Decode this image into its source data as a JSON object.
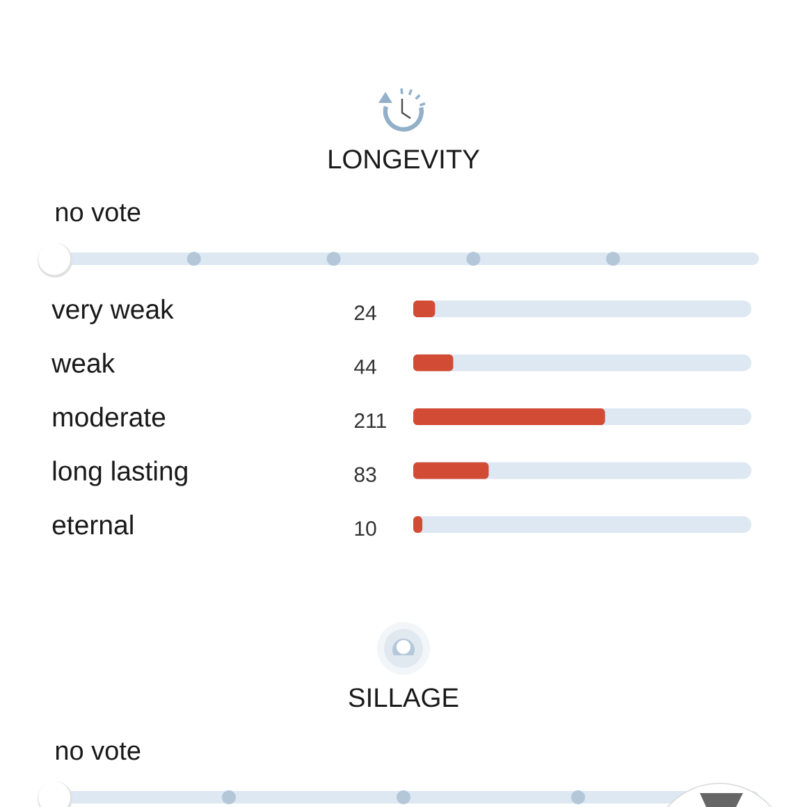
{
  "chart_data": [
    {
      "type": "bar",
      "title": "LONGEVITY",
      "annotations": [
        "no vote"
      ],
      "orientation": "horizontal",
      "categories": [
        "very weak",
        "weak",
        "moderate",
        "long lasting",
        "eternal"
      ],
      "values": [
        24,
        44,
        211,
        83,
        10
      ],
      "color": "#d14b35",
      "data_labels": true
    },
    {
      "type": "other",
      "title": "SILLAGE",
      "annotations": [
        "no vote"
      ]
    }
  ]
}
